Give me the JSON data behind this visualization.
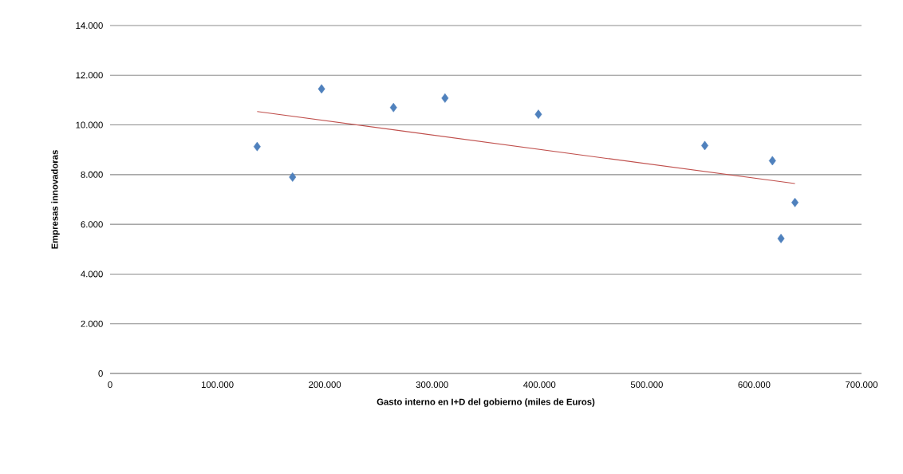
{
  "chart_data": {
    "type": "scatter",
    "xlabel": "Gasto interno en I+D  del gobierno (miles de Euros)",
    "ylabel": "Empresas innovadoras",
    "xlim": [
      0,
      700000
    ],
    "ylim": [
      0,
      14000
    ],
    "xticks": [
      {
        "value": 0,
        "label": "0"
      },
      {
        "value": 100000,
        "label": "100.000"
      },
      {
        "value": 200000,
        "label": "200.000"
      },
      {
        "value": 300000,
        "label": "300.000"
      },
      {
        "value": 400000,
        "label": "400.000"
      },
      {
        "value": 500000,
        "label": "500.000"
      },
      {
        "value": 600000,
        "label": "600.000"
      },
      {
        "value": 700000,
        "label": "700.000"
      }
    ],
    "yticks": [
      {
        "value": 0,
        "label": "0"
      },
      {
        "value": 2000,
        "label": "2.000"
      },
      {
        "value": 4000,
        "label": "4.000"
      },
      {
        "value": 6000,
        "label": "6.000"
      },
      {
        "value": 8000,
        "label": "8.000"
      },
      {
        "value": 10000,
        "label": "10.000"
      },
      {
        "value": 12000,
        "label": "12.000"
      },
      {
        "value": 14000,
        "label": "14.000"
      }
    ],
    "grid": "y",
    "series": [
      {
        "color": "#4f81bd",
        "marker": "diamond",
        "x": [
          137000,
          170000,
          197000,
          264000,
          312000,
          399000,
          554000,
          617000,
          625000,
          638000
        ],
        "values": [
          9130,
          7900,
          11450,
          10700,
          11080,
          10430,
          9170,
          8560,
          5430,
          6880
        ]
      },
      {
        "type": "line",
        "color": "#c0504d",
        "marker": "none",
        "x": [
          137000,
          638000
        ],
        "values": [
          10540,
          7640
        ]
      }
    ]
  }
}
